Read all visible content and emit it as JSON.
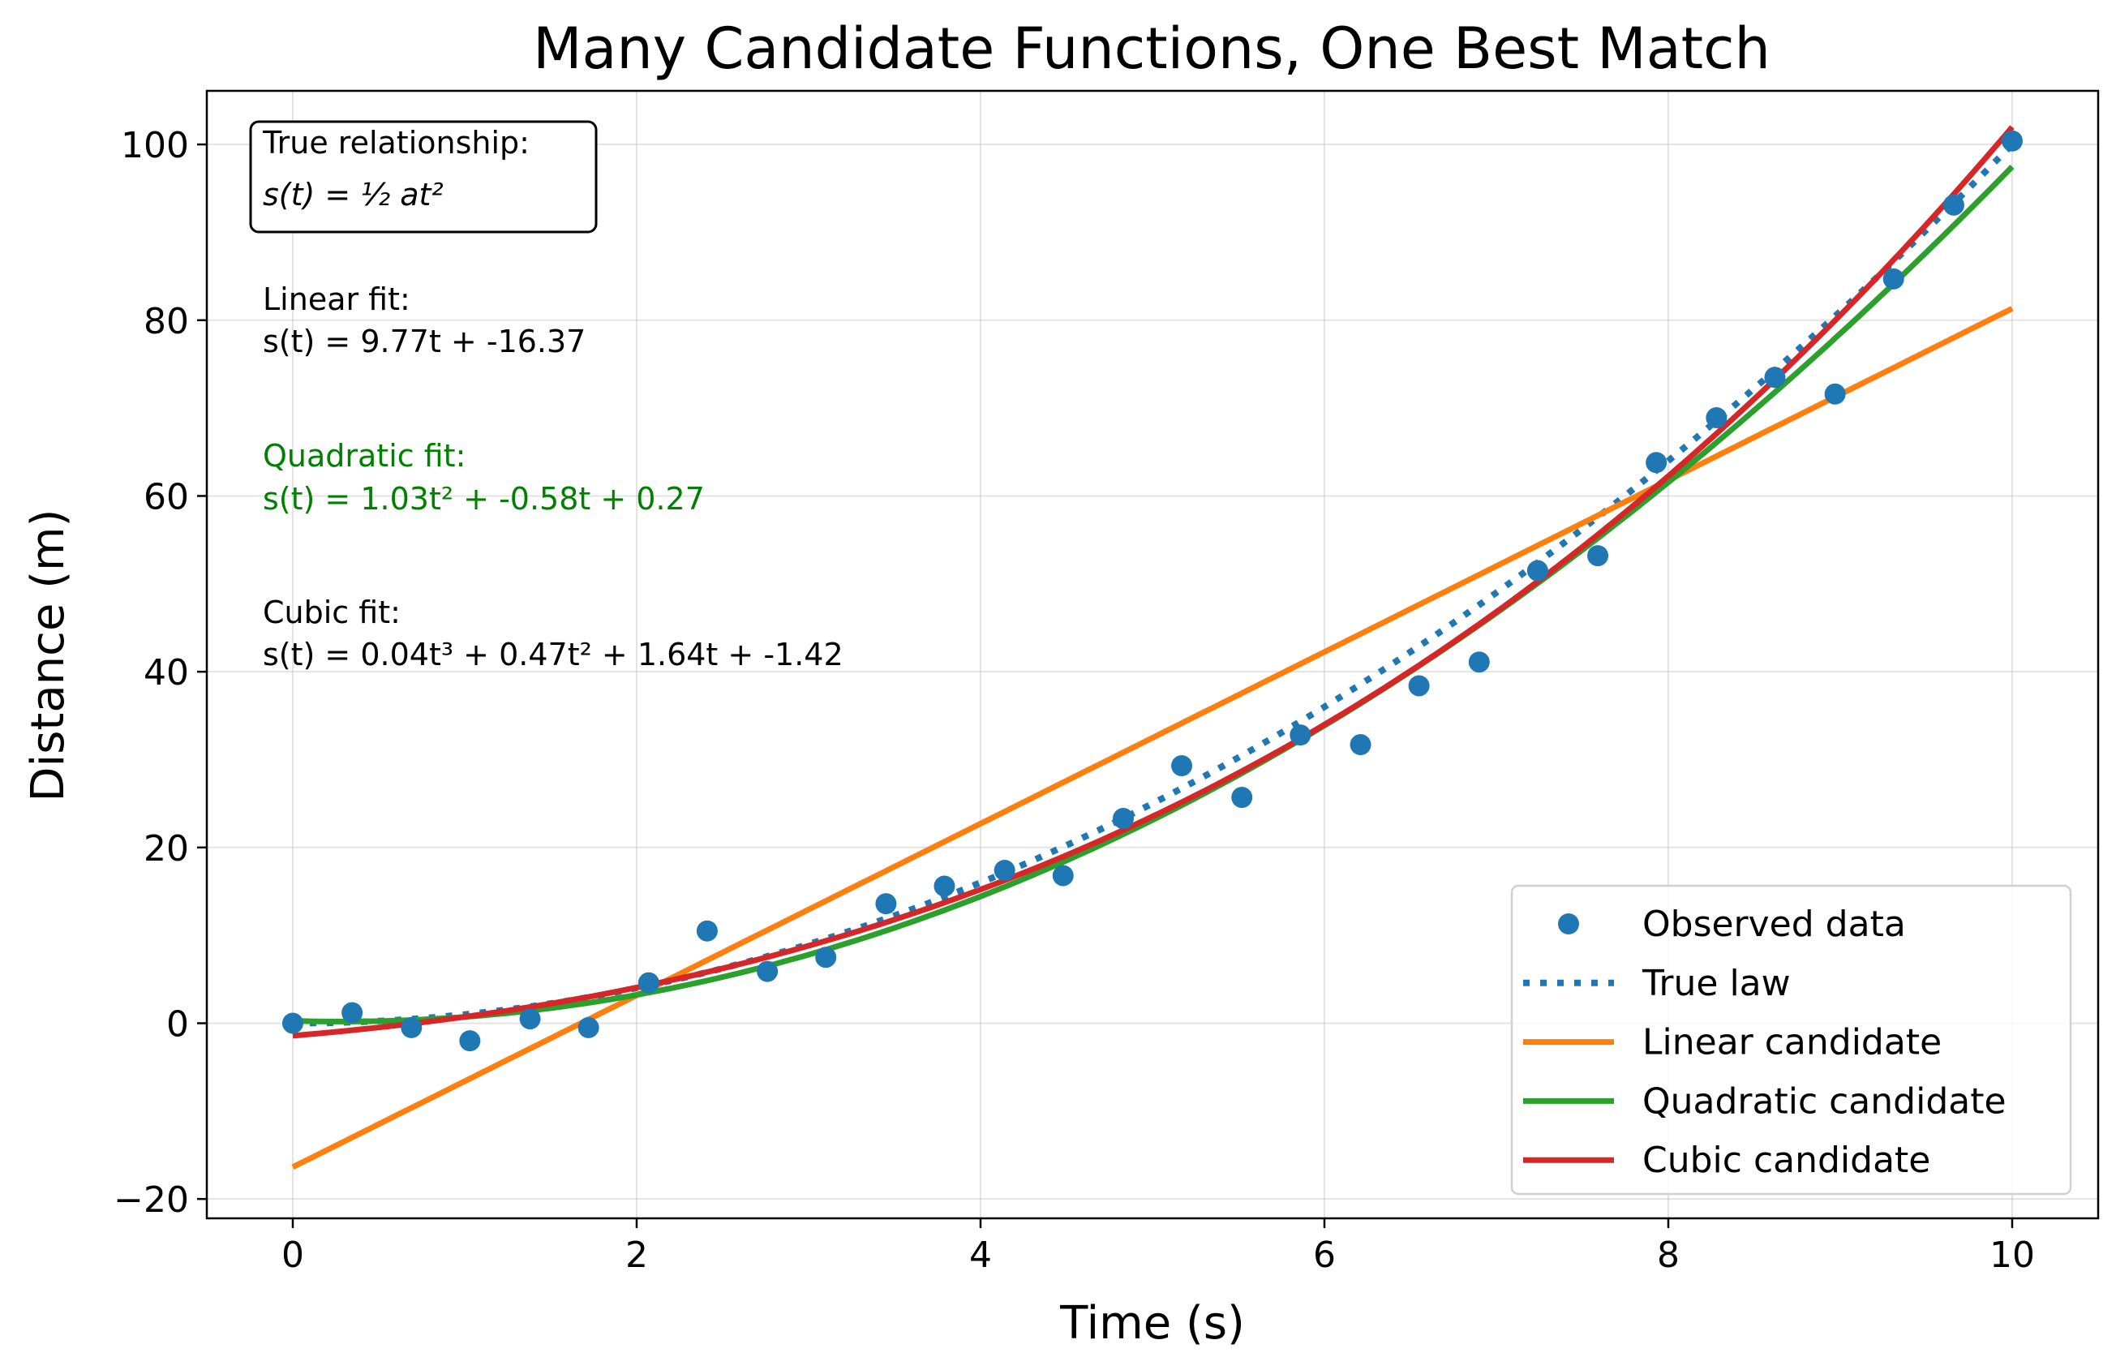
{
  "chart_data": {
    "type": "scatter",
    "title": "Many Candidate Functions, One Best Match",
    "xlabel": "Time (s)",
    "ylabel": "Distance (m)",
    "xlim": [
      -0.5,
      10.5
    ],
    "ylim": [
      -22.2,
      106.1
    ],
    "xticks": [
      0,
      2,
      4,
      6,
      8,
      10
    ],
    "xtick_labels": [
      "0",
      "2",
      "4",
      "6",
      "8",
      "10"
    ],
    "yticks": [
      -20,
      0,
      20,
      40,
      60,
      80,
      100
    ],
    "ytick_labels": [
      "−20",
      "0",
      "20",
      "40",
      "60",
      "80",
      "100"
    ],
    "grid": true,
    "legend_position": "lower-right",
    "series": [
      {
        "name": "Observed data",
        "kind": "scatter",
        "color": "#1f77b4",
        "x": [
          0,
          0.345,
          0.69,
          1.03,
          1.38,
          1.72,
          2.07,
          2.41,
          2.76,
          3.1,
          3.45,
          3.79,
          4.14,
          4.48,
          4.83,
          5.17,
          5.52,
          5.86,
          6.21,
          6.55,
          6.9,
          7.24,
          7.59,
          7.93,
          8.28,
          8.62,
          8.97,
          9.31,
          9.66,
          10
        ],
        "y": [
          0,
          1.2,
          -0.5,
          -2.0,
          0.5,
          -0.5,
          4.6,
          10.5,
          5.9,
          7.5,
          13.6,
          15.6,
          17.4,
          16.8,
          23.3,
          29.3,
          25.7,
          32.8,
          31.7,
          38.4,
          41.1,
          51.5,
          53.2,
          63.8,
          68.9,
          73.5,
          71.6,
          84.7,
          93.1,
          100.4
        ]
      },
      {
        "name": "True law",
        "kind": "line",
        "style": "dotted",
        "color": "#1f77b4",
        "coefficients": [
          1,
          0,
          0
        ]
      },
      {
        "name": "Linear candidate",
        "kind": "line",
        "color": "#ff7f0e",
        "coefficients": [
          9.77,
          -16.37
        ]
      },
      {
        "name": "Quadratic candidate",
        "kind": "line",
        "color": "#2ca02c",
        "coefficients": [
          1.03,
          -0.58,
          0.27
        ]
      },
      {
        "name": "Cubic candidate",
        "kind": "line",
        "color": "#d62728",
        "coefficients": [
          0.04,
          0.47,
          1.64,
          -1.42
        ]
      }
    ],
    "annotations": {
      "true_box_title": "True relationship:",
      "true_box_formula": "s(t) = ½ at²",
      "linear_title": "Linear fit:",
      "linear_eq": "s(t) = 9.77t + -16.37",
      "quadratic_title": "Quadratic fit:",
      "quadratic_eq": "s(t) = 1.03t² + -0.58t + 0.27",
      "quadratic_color": "#008000",
      "cubic_title": "Cubic fit:",
      "cubic_eq": "s(t) = 0.04t³ + 0.47t² + 1.64t + -1.42"
    }
  }
}
